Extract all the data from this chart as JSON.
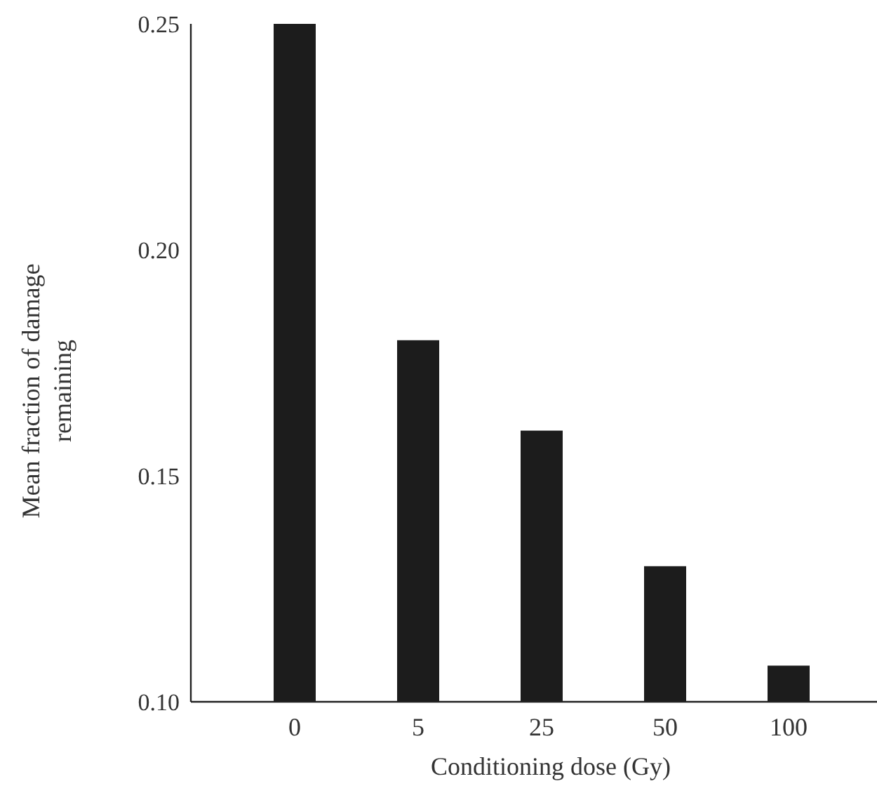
{
  "chart_data": {
    "type": "bar",
    "xlabel": "Conditioning dose (Gy)",
    "ylabel": "Mean fraction of damage remaining",
    "categories": [
      "0",
      "5",
      "25",
      "50",
      "100"
    ],
    "values": [
      0.25,
      0.18,
      0.16,
      0.13,
      0.108
    ],
    "color": "#1c1c1c",
    "ylim": [
      0.1,
      0.25
    ],
    "yticks": [
      {
        "value": 0.1,
        "label": "0.10"
      },
      {
        "value": 0.15,
        "label": "0.15"
      },
      {
        "value": 0.2,
        "label": "0.20"
      },
      {
        "value": 0.25,
        "label": "0.25"
      }
    ],
    "grid": false
  }
}
